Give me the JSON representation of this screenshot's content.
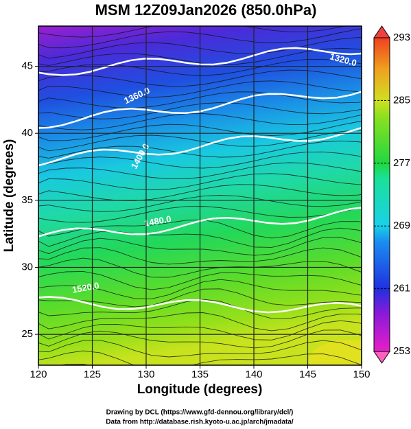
{
  "chart_data": {
    "type": "map",
    "title": "MSM 12Z09Jan2026 (850.0hPa)",
    "x_label": "Longitude (degrees)",
    "y_label": "Latitude  (degrees)",
    "xlim": [
      120,
      150
    ],
    "xticks": [
      120,
      125,
      130,
      135,
      140,
      145,
      150
    ],
    "ylim": [
      22.7,
      48.0
    ],
    "yticks": [
      25,
      30,
      35,
      40,
      45
    ],
    "grid": true,
    "colorbar": {
      "lim": [
        253,
        293
      ],
      "ticks": [
        253,
        261,
        269,
        277,
        285,
        293
      ]
    },
    "contours": [
      {
        "value": 1320,
        "label": "1320.0"
      },
      {
        "value": 1360,
        "label": "1360.0"
      },
      {
        "value": 1400,
        "label": "1400.0"
      },
      {
        "value": 1480,
        "label": "1480.0"
      },
      {
        "value": 1520,
        "label": "1520.0"
      }
    ],
    "credits": [
      "Drawing by DCL (https://www.gfd-dennou.org/library/dcl/)",
      "Data from http://database.rish.kyoto-u.ac.jp/arch/jmadata/"
    ]
  }
}
